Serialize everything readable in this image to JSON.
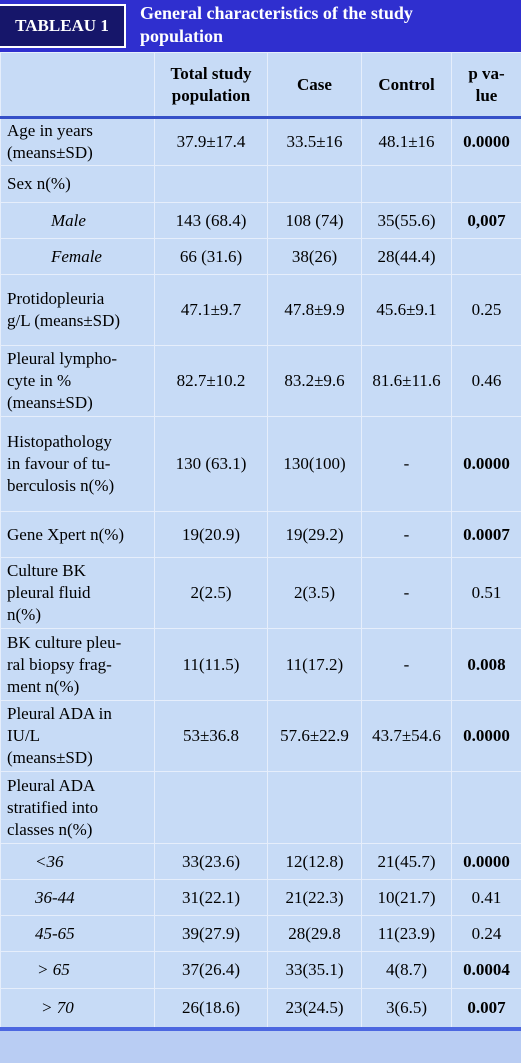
{
  "header": {
    "label": "TABLEAU 1",
    "title": "General characteristics of the study\npopulation"
  },
  "table": {
    "columns": [
      "Total study\npopulation",
      "Case",
      "Control",
      "p va-\nlue"
    ],
    "rows": [
      {
        "label": "Age in years\n(means±SD)",
        "total": "37.9±17.4",
        "case": "33.5±16",
        "control": "48.1±16",
        "p": "0.0000"
      },
      {
        "label": "Sex n(%)"
      },
      {
        "label": "Male",
        "total": "143 (68.4)",
        "case": "108 (74)",
        "control": "35(55.6)",
        "p": "0,007"
      },
      {
        "label": "Female",
        "total": "66 (31.6)",
        "case": "38(26)",
        "control": "28(44.4)"
      },
      {
        "label": "Protidopleuria\ng/L (means±SD)",
        "total": "47.1±9.7",
        "case": "47.8±9.9",
        "control": "45.6±9.1",
        "p": "0.25"
      },
      {
        "label": "Pleural lympho-\ncyte in %\n(means±SD)",
        "total": "82.7±10.2",
        "case": "83.2±9.6",
        "control": "81.6±11.6",
        "p": "0.46"
      },
      {
        "label": "Histopathology\nin favour of tu-\nberculosis n(%)",
        "total": "130 (63.1)",
        "case": "130(100)",
        "control": "-",
        "p": "0.0000"
      },
      {
        "label": "Gene Xpert n(%)",
        "total": "19(20.9)",
        "case": "19(29.2)",
        "control": "-",
        "p": "0.0007"
      },
      {
        "label": "Culture BK\npleural fluid\nn(%)",
        "total": "2(2.5)",
        "case": "2(3.5)",
        "control": "-",
        "p": "0.51"
      },
      {
        "label": "BK culture pleu-\nral biopsy frag-\nment n(%)",
        "total": "11(11.5)",
        "case": "11(17.2)",
        "control": "-",
        "p": "0.008"
      },
      {
        "label": "Pleural ADA in\nIU/L\n(means±SD)",
        "total": "53±36.8",
        "case": "57.6±22.9",
        "control": "43.7±54.6",
        "p": "0.0000"
      },
      {
        "label": "Pleural ADA\nstratified into\nclasses n(%)"
      },
      {
        "label": "<36",
        "total": "33(23.6)",
        "case": "12(12.8)",
        "control": "21(45.7)",
        "p": "0.0000"
      },
      {
        "label": "36-44",
        "total": "31(22.1)",
        "case": "21(22.3)",
        "control": "10(21.7)",
        "p": "0.41"
      },
      {
        "label": "45-65",
        "total": "39(27.9)",
        "case": "28(29.8",
        "control": "11(23.9)",
        "p": "0.24"
      },
      {
        "label": "> 65",
        "total": "37(26.4)",
        "case": "33(35.1)",
        "control": "4(8.7)",
        "p": "0.0004"
      },
      {
        "label": "> 70",
        "total": "26(18.6)",
        "case": "23(24.5)",
        "control": "3(6.5)",
        "p": "0.007"
      }
    ]
  }
}
